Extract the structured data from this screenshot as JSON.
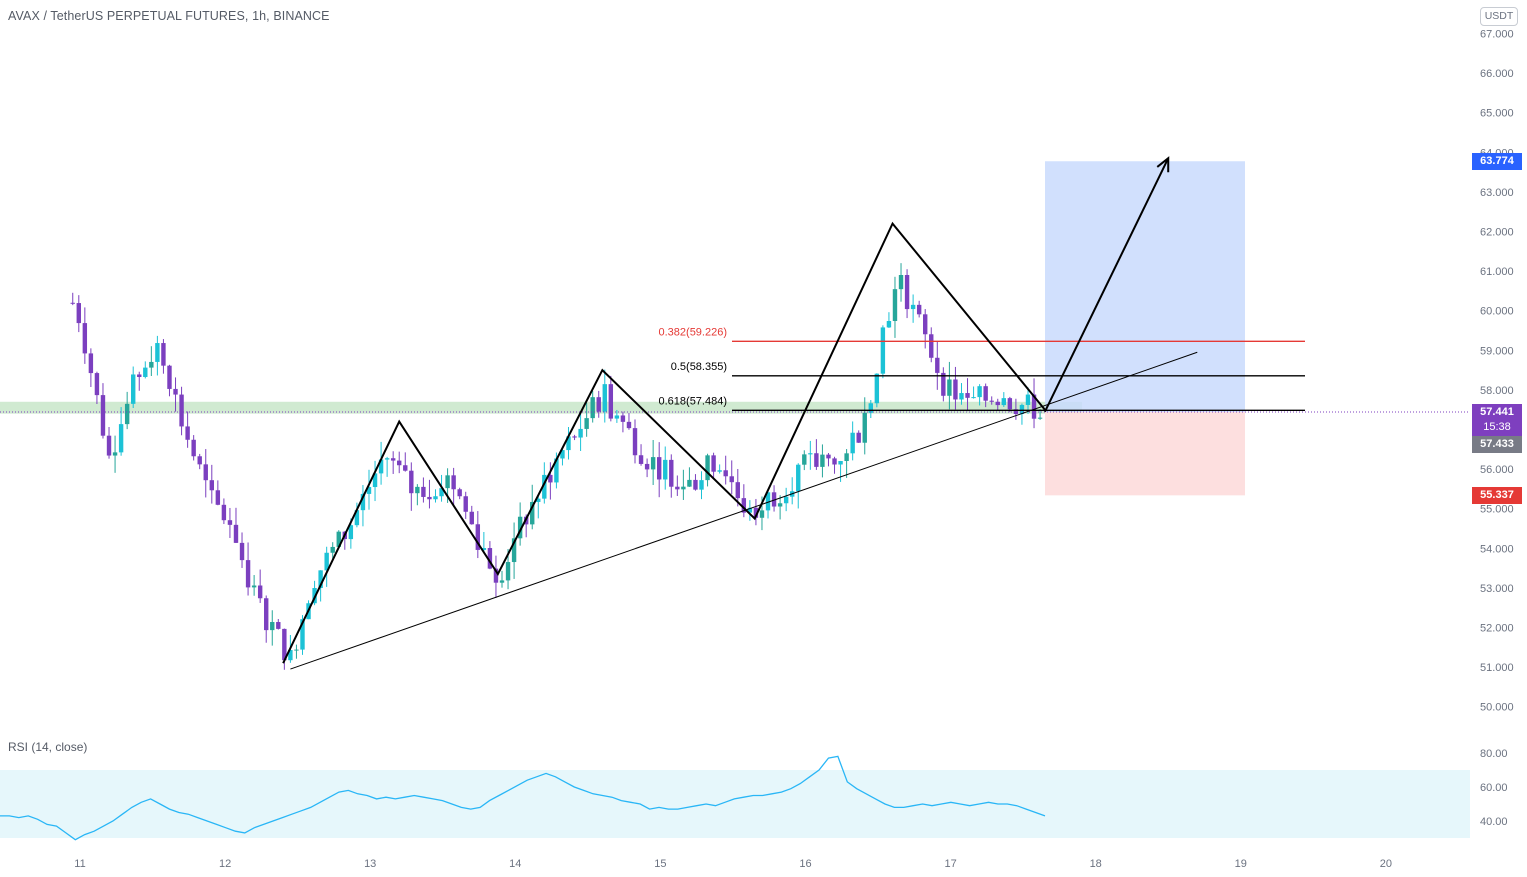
{
  "header": {
    "title": "AVAX / TetherUS PERPETUAL FUTURES, 1h, BINANCE",
    "currency_button": "USDT"
  },
  "rsi": {
    "label": "RSI (14, close)",
    "ticks": [
      "80.00",
      "60.00",
      "40.00"
    ]
  },
  "price_tags": {
    "target": "63.774",
    "current": "57.441",
    "countdown": "15:38",
    "last": "57.433",
    "stop": "55.337"
  },
  "colors": {
    "up": "#26a69a",
    "up_alt": "#1cc2d6",
    "down": "#7b3fbf",
    "fib_0382": "#e53935",
    "target_zone": "#c9dafd",
    "stop_zone": "#fddcdc",
    "support_zone": "#c8e6c9",
    "rsi_band": "#e6f7fb",
    "rsi_line": "#29b6f6",
    "tag_target": "#2962ff",
    "tag_current": "#7e3fbf",
    "tag_last": "#787b86",
    "tag_stop": "#e53935"
  },
  "chart_data": {
    "type": "candlestick",
    "symbol": "AVAX / TetherUS PERPETUAL FUTURES",
    "interval": "1h",
    "exchange": "BINANCE",
    "y_axis": {
      "ticks": [
        "50.000",
        "51.000",
        "52.000",
        "53.000",
        "54.000",
        "55.000",
        "56.000",
        "57.000",
        "58.000",
        "59.000",
        "60.000",
        "61.000",
        "62.000",
        "63.000",
        "64.000",
        "65.000",
        "66.000",
        "67.000"
      ],
      "range": [
        49.5,
        67.2
      ]
    },
    "x_axis": {
      "ticks": [
        "11",
        "12",
        "13",
        "14",
        "15",
        "16",
        "17",
        "18",
        "19",
        "20"
      ]
    },
    "price_path": [
      {
        "date": "10.95",
        "price": 60.2
      },
      {
        "date": "11.0",
        "price": 59.8
      },
      {
        "date": "11.2",
        "price": 56.3
      },
      {
        "date": "11.4",
        "price": 58.4
      },
      {
        "date": "11.55",
        "price": 59.2
      },
      {
        "date": "11.7",
        "price": 57.2
      },
      {
        "date": "11.9",
        "price": 55.2
      },
      {
        "date": "12.05",
        "price": 54.6
      },
      {
        "date": "12.2",
        "price": 52.8
      },
      {
        "date": "12.45",
        "price": 51.2
      },
      {
        "date": "12.6",
        "price": 53.2
      },
      {
        "date": "12.85",
        "price": 54.5
      },
      {
        "date": "13.1",
        "price": 56.4
      },
      {
        "date": "13.3",
        "price": 55.4
      },
      {
        "date": "13.55",
        "price": 55.8
      },
      {
        "date": "13.75",
        "price": 54.2
      },
      {
        "date": "13.88",
        "price": 53.3
      },
      {
        "date": "14.1",
        "price": 55.0
      },
      {
        "date": "14.3",
        "price": 56.3
      },
      {
        "date": "14.6",
        "price": 57.9
      },
      {
        "date": "14.9",
        "price": 56.3
      },
      {
        "date": "15.2",
        "price": 55.6
      },
      {
        "date": "15.4",
        "price": 56.3
      },
      {
        "date": "15.6",
        "price": 54.9
      },
      {
        "date": "15.8",
        "price": 55.4
      },
      {
        "date": "16.0",
        "price": 56.1
      },
      {
        "date": "16.2",
        "price": 56.2
      },
      {
        "date": "16.4",
        "price": 57.1
      },
      {
        "date": "16.55",
        "price": 59.8
      },
      {
        "date": "16.65",
        "price": 60.7
      },
      {
        "date": "16.8",
        "price": 59.5
      },
      {
        "date": "16.95",
        "price": 58.2
      },
      {
        "date": "17.1",
        "price": 57.6
      },
      {
        "date": "17.3",
        "price": 57.9
      },
      {
        "date": "17.5",
        "price": 57.6
      },
      {
        "date": "17.65",
        "price": 57.44
      }
    ],
    "drawings": {
      "fibonacci_levels": [
        {
          "label": "0.382(59.226)",
          "value": 59.226
        },
        {
          "label": "0.5(58.355)",
          "value": 58.355
        },
        {
          "label": "0.618(57.484)",
          "value": 57.484
        }
      ],
      "support_zone": [
        57.4,
        57.7
      ],
      "zigzag": [
        [
          12.4,
          51.1
        ],
        [
          13.2,
          57.2
        ],
        [
          13.88,
          53.35
        ],
        [
          14.6,
          58.5
        ],
        [
          15.65,
          54.75
        ],
        [
          16.6,
          62.2
        ],
        [
          17.65,
          57.5
        ]
      ],
      "trendline": [
        [
          12.45,
          50.95
        ],
        [
          18.7,
          58.95
        ]
      ],
      "arrow": [
        [
          17.65,
          57.45
        ],
        [
          18.5,
          63.85
        ]
      ],
      "target": 63.774,
      "entry": 57.441,
      "stop": 55.337
    },
    "rsi": {
      "period": 14,
      "source": "close",
      "band": [
        30,
        70
      ],
      "values": [
        43,
        43,
        42,
        43,
        41,
        38,
        37,
        33,
        29,
        32,
        34,
        37,
        40,
        44,
        48,
        51,
        53,
        50,
        47,
        45,
        44,
        42,
        40,
        38,
        36,
        34,
        33,
        36,
        38,
        40,
        42,
        44,
        46,
        48,
        51,
        54,
        57,
        58,
        56,
        55,
        53,
        54,
        53,
        54,
        55,
        54,
        53,
        52,
        50,
        48,
        47,
        48,
        52,
        55,
        58,
        61,
        64,
        66,
        68,
        66,
        63,
        60,
        58,
        56,
        55,
        54,
        52,
        51,
        50,
        47,
        48,
        47,
        47,
        48,
        49,
        50,
        49,
        51,
        53,
        54,
        55,
        55,
        56,
        57,
        59,
        62,
        66,
        70,
        77,
        78,
        63,
        59,
        56,
        53,
        50,
        48,
        48,
        49,
        50,
        49,
        50,
        51,
        50,
        49,
        50,
        51,
        50,
        50,
        49,
        47,
        45,
        43
      ]
    },
    "price_scale": [
      {
        "label": "63.774",
        "value": 63.774
      },
      {
        "label": "57.441",
        "value": 57.441
      },
      {
        "label": "57.433",
        "value": 57.433
      },
      {
        "label": "55.337",
        "value": 55.337
      }
    ]
  }
}
